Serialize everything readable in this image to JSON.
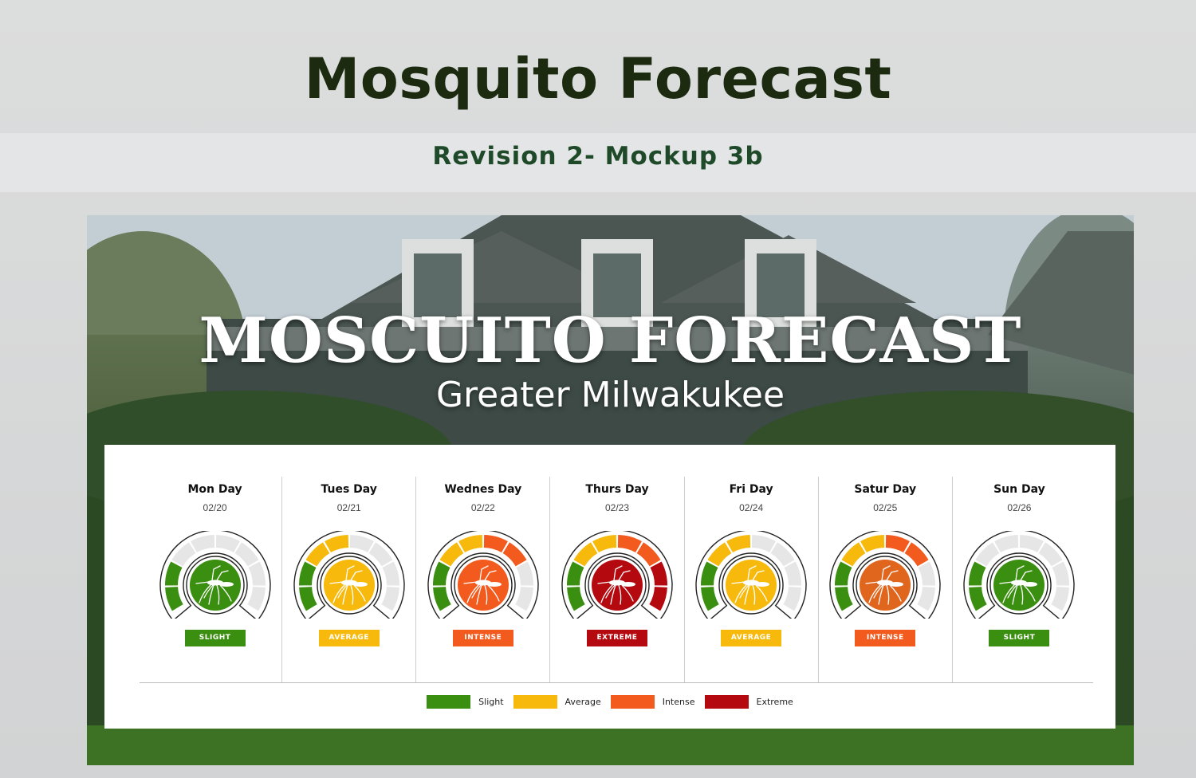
{
  "header": {
    "title": "Mosquito Forecast",
    "subtitle": "Revision 2- Mockup 3b"
  },
  "hero": {
    "title": "MOSCUITO FORECAST",
    "subtitle": "Greater Milwakukee"
  },
  "levels": {
    "slight": {
      "label": "SLIGHT",
      "color": "#3a8f10",
      "segments": 2
    },
    "average": {
      "label": "AVERAGE",
      "color": "#f6b90c",
      "segments": 4
    },
    "intense": {
      "label": "INTENSE",
      "color": "#f25a1e",
      "segments": 6
    },
    "extreme": {
      "label": "EXTREME",
      "color": "#b3090f",
      "segments": 8
    }
  },
  "days": [
    {
      "name": "Mon Day",
      "date": "02/20",
      "level": "slight",
      "badge": "SLIGHT"
    },
    {
      "name": "Tues Day",
      "date": "02/21",
      "level": "average",
      "badge": "AVERAGE"
    },
    {
      "name": "Wednes Day",
      "date": "02/22",
      "level": "intense",
      "badge": "INTENSE"
    },
    {
      "name": "Thurs Day",
      "date": "02/23",
      "level": "extreme",
      "badge": "EXTREME"
    },
    {
      "name": "Fri Day",
      "date": "02/24",
      "level": "average",
      "badge": "AVERAGE"
    },
    {
      "name": "Satur Day",
      "date": "02/25",
      "level": "intense",
      "badge": "INTENSE"
    },
    {
      "name": "Sun Day",
      "date": "02/26",
      "level": "slight",
      "badge": "SLIGHT"
    }
  ],
  "legend": [
    {
      "label": "Slight",
      "color": "#3a8f10"
    },
    {
      "label": "Average",
      "color": "#f6b90c"
    },
    {
      "label": "Intense",
      "color": "#f25a1e"
    },
    {
      "label": "Extreme",
      "color": "#b3090f"
    }
  ],
  "colors": {
    "inactive_segment": "#e6e6e6",
    "title": "#1c2a10",
    "subtitle": "#1f4a2a",
    "intense_face": "#e0661e"
  }
}
